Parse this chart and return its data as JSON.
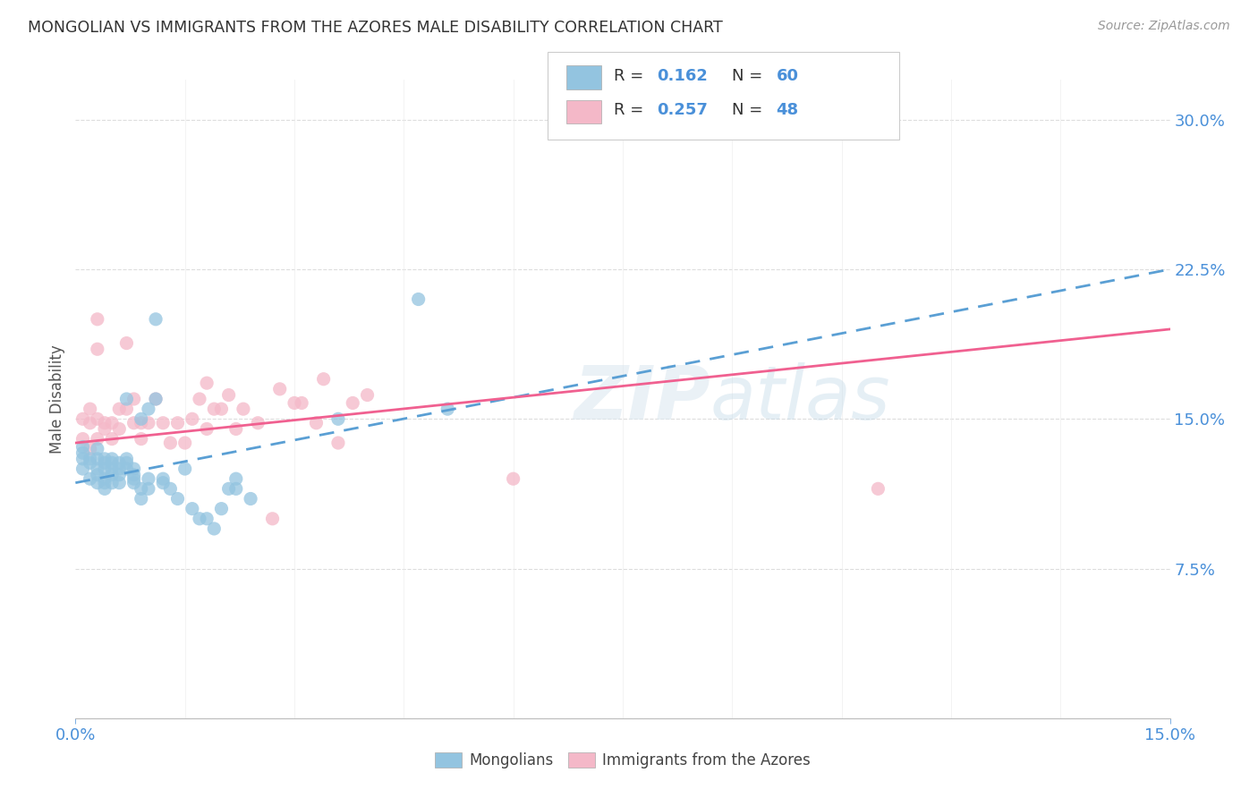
{
  "title": "MONGOLIAN VS IMMIGRANTS FROM THE AZORES MALE DISABILITY CORRELATION CHART",
  "source": "Source: ZipAtlas.com",
  "ylabel": "Male Disability",
  "xlim": [
    0.0,
    0.15
  ],
  "ylim": [
    0.0,
    0.32
  ],
  "blue_color": "#93c4e0",
  "pink_color": "#f4b8c8",
  "blue_line_color": "#5a9fd4",
  "pink_line_color": "#f06090",
  "watermark": "ZIPatlas",
  "legend_R1": "0.162",
  "legend_N1": "60",
  "legend_R2": "0.257",
  "legend_N2": "48",
  "mongolians_x": [
    0.001,
    0.001,
    0.001,
    0.001,
    0.002,
    0.002,
    0.002,
    0.003,
    0.003,
    0.003,
    0.003,
    0.003,
    0.004,
    0.004,
    0.004,
    0.004,
    0.004,
    0.004,
    0.005,
    0.005,
    0.005,
    0.005,
    0.005,
    0.006,
    0.006,
    0.006,
    0.006,
    0.007,
    0.007,
    0.007,
    0.007,
    0.008,
    0.008,
    0.008,
    0.008,
    0.009,
    0.009,
    0.009,
    0.01,
    0.01,
    0.01,
    0.011,
    0.011,
    0.012,
    0.012,
    0.013,
    0.014,
    0.015,
    0.016,
    0.017,
    0.018,
    0.019,
    0.02,
    0.021,
    0.022,
    0.022,
    0.024,
    0.036,
    0.047,
    0.051
  ],
  "mongolians_y": [
    0.13,
    0.133,
    0.136,
    0.125,
    0.13,
    0.128,
    0.12,
    0.13,
    0.125,
    0.122,
    0.118,
    0.135,
    0.13,
    0.128,
    0.125,
    0.12,
    0.118,
    0.115,
    0.13,
    0.128,
    0.125,
    0.122,
    0.118,
    0.128,
    0.125,
    0.122,
    0.118,
    0.13,
    0.128,
    0.125,
    0.16,
    0.125,
    0.122,
    0.12,
    0.118,
    0.115,
    0.11,
    0.15,
    0.12,
    0.115,
    0.155,
    0.16,
    0.2,
    0.118,
    0.12,
    0.115,
    0.11,
    0.125,
    0.105,
    0.1,
    0.1,
    0.095,
    0.105,
    0.115,
    0.115,
    0.12,
    0.11,
    0.15,
    0.21,
    0.155
  ],
  "azores_x": [
    0.001,
    0.001,
    0.002,
    0.002,
    0.002,
    0.003,
    0.003,
    0.003,
    0.003,
    0.004,
    0.004,
    0.005,
    0.005,
    0.006,
    0.006,
    0.007,
    0.007,
    0.008,
    0.008,
    0.009,
    0.009,
    0.01,
    0.011,
    0.012,
    0.013,
    0.014,
    0.015,
    0.016,
    0.017,
    0.018,
    0.018,
    0.019,
    0.02,
    0.021,
    0.022,
    0.023,
    0.025,
    0.027,
    0.028,
    0.03,
    0.031,
    0.033,
    0.034,
    0.036,
    0.038,
    0.04,
    0.06,
    0.11
  ],
  "azores_y": [
    0.15,
    0.14,
    0.148,
    0.155,
    0.135,
    0.185,
    0.2,
    0.15,
    0.14,
    0.148,
    0.145,
    0.148,
    0.14,
    0.155,
    0.145,
    0.188,
    0.155,
    0.148,
    0.16,
    0.148,
    0.14,
    0.148,
    0.16,
    0.148,
    0.138,
    0.148,
    0.138,
    0.15,
    0.16,
    0.168,
    0.145,
    0.155,
    0.155,
    0.162,
    0.145,
    0.155,
    0.148,
    0.1,
    0.165,
    0.158,
    0.158,
    0.148,
    0.17,
    0.138,
    0.158,
    0.162,
    0.12,
    0.115
  ],
  "trend_blue_x0": 0.0,
  "trend_blue_y0": 0.118,
  "trend_blue_x1": 0.15,
  "trend_blue_y1": 0.225,
  "trend_pink_x0": 0.0,
  "trend_pink_y0": 0.138,
  "trend_pink_x1": 0.15,
  "trend_pink_y1": 0.195
}
